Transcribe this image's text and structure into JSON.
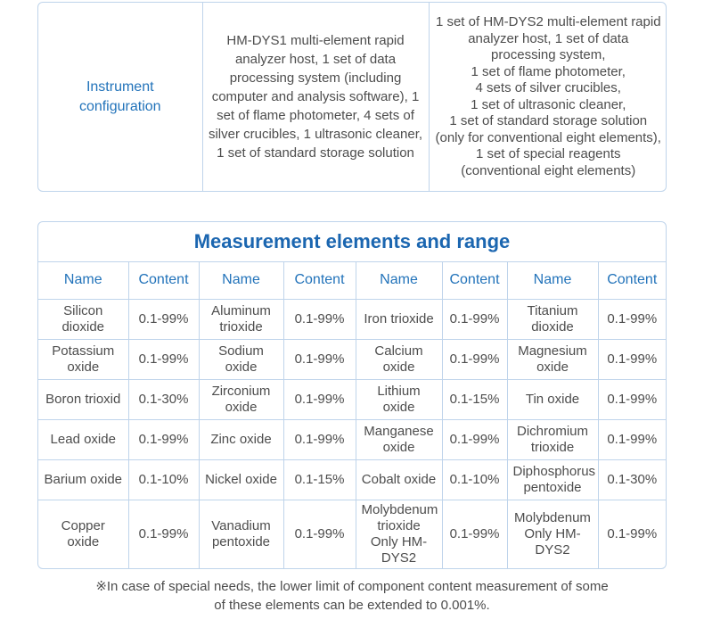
{
  "colors": {
    "border": "#bfd4eb",
    "blue": "#2273ba",
    "title_blue": "#1b66b0",
    "text": "#4d4d4d",
    "note": "#4c4c4c"
  },
  "spec_table": {
    "label": "Instrument configuration",
    "dys1_config": "HM-DYS1 multi-element rapid analyzer host, 1 set of data processing system (including computer and analysis software), 1 set of flame photometer, 4 sets of silver crucibles, 1 ultrasonic cleaner, 1 set of standard storage solution",
    "dys2_config": "1 set of HM-DYS2 multi-element rapid analyzer host, 1 set of data processing system,\n1 set of flame photometer,\n4 sets of silver crucibles,\n1 set of ultrasonic cleaner,\n1 set of standard storage solution (only for conventional eight elements), 1 set of special reagents (conventional eight elements)"
  },
  "elements_table": {
    "title": "Measurement elements and range",
    "headers": [
      "Name",
      "Content",
      "Name",
      "Content",
      "Name",
      "Content",
      "Name",
      "Content"
    ],
    "rows": [
      {
        "cells": [
          {
            "name": "Silicon dioxide",
            "content": "0.1-99%"
          },
          {
            "name": "Aluminum trioxide",
            "content": "0.1-99%"
          },
          {
            "name": "Iron trioxide",
            "content": "0.1-99%"
          },
          {
            "name": "Titanium dioxide",
            "content": "0.1-99%"
          }
        ]
      },
      {
        "cells": [
          {
            "name": "Potassium oxide",
            "content": "0.1-99%"
          },
          {
            "name": "Sodium oxide",
            "content": "0.1-99%"
          },
          {
            "name": "Calcium oxide",
            "content": "0.1-99%"
          },
          {
            "name": "Magnesium oxide",
            "content": "0.1-99%"
          }
        ]
      },
      {
        "cells": [
          {
            "name": "Boron trioxid",
            "content": "0.1-30%"
          },
          {
            "name": "Zirconium oxide",
            "content": "0.1-99%"
          },
          {
            "name": "Lithium oxide",
            "content": "0.1-15%"
          },
          {
            "name": "Tin oxide",
            "content": "0.1-99%"
          }
        ]
      },
      {
        "cells": [
          {
            "name": "Lead oxide",
            "content": "0.1-99%"
          },
          {
            "name": "Zinc oxide",
            "content": "0.1-99%"
          },
          {
            "name": "Manganese oxide",
            "content": "0.1-99%"
          },
          {
            "name": "Dichromium trioxide",
            "content": "0.1-99%"
          }
        ]
      },
      {
        "cells": [
          {
            "name": "Barium oxide",
            "content": "0.1-10%"
          },
          {
            "name": "Nickel oxide",
            "content": "0.1-15%"
          },
          {
            "name": "Cobalt oxide",
            "content": "0.1-10%"
          },
          {
            "name": "Diphosphorus pentoxide",
            "content": "0.1-30%"
          }
        ]
      },
      {
        "cells": [
          {
            "name": "Copper oxide",
            "content": "0.1-99%"
          },
          {
            "name": "Vanadium pentoxide",
            "content": "0.1-99%"
          },
          {
            "name": "Molybdenum trioxide\nOnly HM-DYS2",
            "content": "0.1-99%"
          },
          {
            "name": "Molybdenum\nOnly HM-DYS2",
            "content": "0.1-99%"
          }
        ]
      }
    ]
  },
  "footnote": "※In case of special needs, the lower limit of component content measurement of some\nof these elements can be extended to 0.001%."
}
